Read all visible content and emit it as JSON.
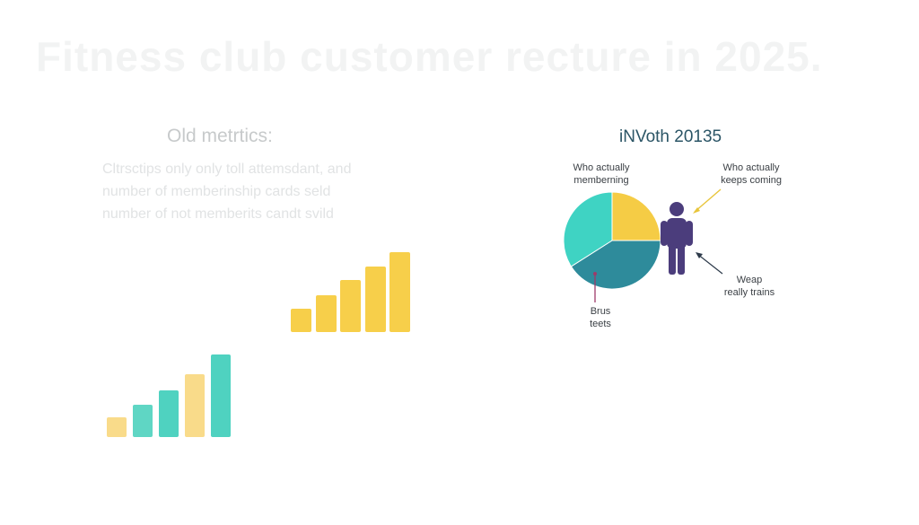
{
  "title": "Fitness club customer recture in 2025.",
  "old_metrics": {
    "heading": "Old metrtics:",
    "lines": [
      "Cltrsctips only only toll attemsdant, and",
      "number of memberinship cards seld",
      "number of not memberits candt svild"
    ]
  },
  "bar_groups": {
    "yellow_bars": {
      "values": [
        1.6,
        2.5,
        3.5,
        4.4,
        5.4
      ],
      "colors": [
        "#f7cf4a",
        "#f7cf4a",
        "#f7cf4a",
        "#f7cf4a",
        "#f7cf4a"
      ]
    },
    "teal_bars": {
      "values": [
        1.2,
        2.0,
        2.9,
        3.9,
        5.1
      ],
      "colors": [
        "#f9db8a",
        "#5fd6c4",
        "#4fd2c0",
        "#f9db8a",
        "#4fd2c0"
      ]
    }
  },
  "new_metrics": {
    "heading": "iNVoth 20135",
    "pie": {
      "slices": [
        {
          "value": 0.25,
          "color": "#f5cc45"
        },
        {
          "value": 0.41,
          "color": "#2e8b9b"
        },
        {
          "value": 0.34,
          "color": "#3fd3c3"
        }
      ]
    },
    "annotations": {
      "top_left": [
        "Who actually",
        "memberning"
      ],
      "top_right": [
        "Who actually",
        "keeps coming"
      ],
      "bottom_right": [
        "Weap",
        "really trains"
      ],
      "bottom_left": [
        "Brus",
        "teets"
      ]
    },
    "person_color": "#4b3d7c",
    "arrow_yellow": "#e8c53a",
    "arrow_dark": "#2d3a4a",
    "pointer_color": "#9e3a6a"
  }
}
